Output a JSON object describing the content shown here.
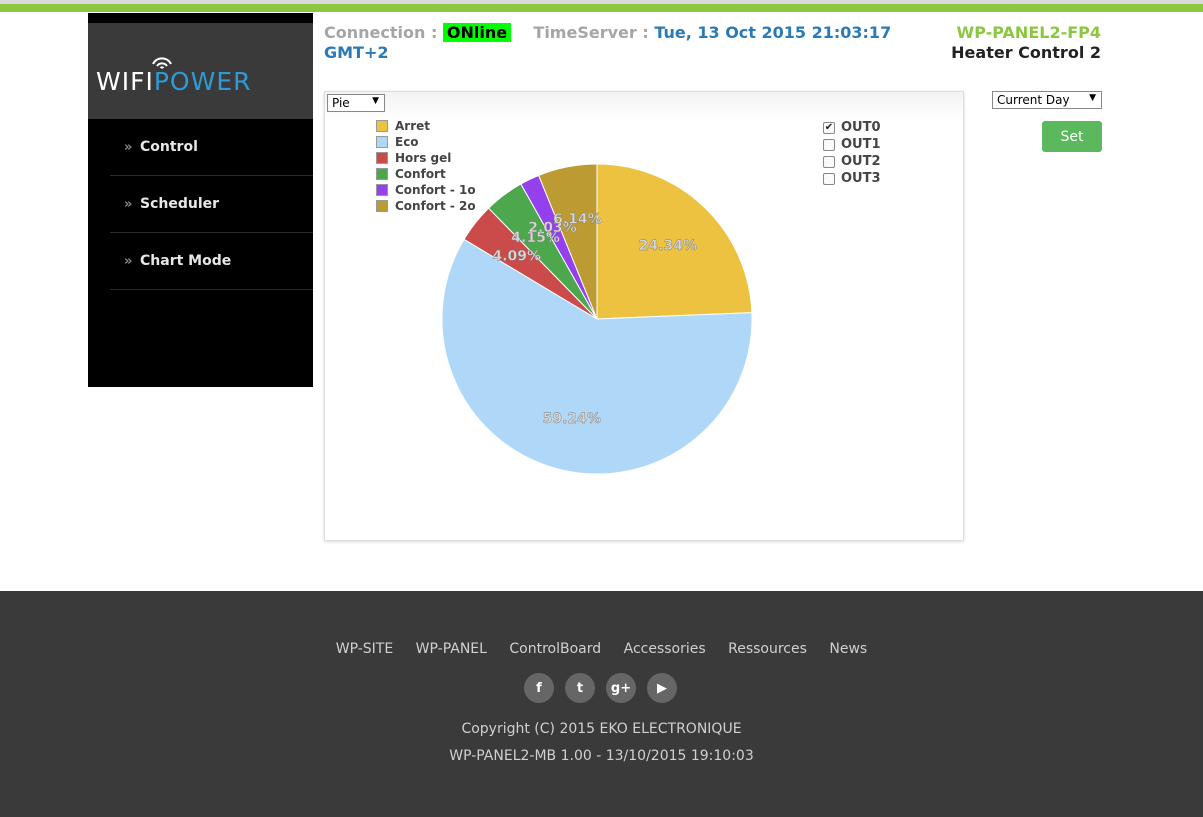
{
  "brand": {
    "wifi": "WIFI",
    "power": "POWER"
  },
  "nav": [
    {
      "label": "Control"
    },
    {
      "label": "Scheduler"
    },
    {
      "label": "Chart Mode"
    }
  ],
  "header": {
    "connection_label": "Connection :",
    "connection_status": "ONline",
    "timeserver_label": "TimeServer :",
    "timeserver_value": "Tue, 13 Oct 2015 21:03:17",
    "timezone": "GMT+2",
    "device_id": "WP-PANEL2-FP4",
    "device_name": "Heater Control 2"
  },
  "controls": {
    "chart_type": "Pie",
    "period": "Current Day",
    "set_label": "Set"
  },
  "outputs": [
    {
      "label": "OUT0",
      "checked": true
    },
    {
      "label": "OUT1",
      "checked": false
    },
    {
      "label": "OUT2",
      "checked": false
    },
    {
      "label": "OUT3",
      "checked": false
    }
  ],
  "chart_data": {
    "type": "pie",
    "categories": [
      "Arret",
      "Eco",
      "Hors gel",
      "Confort",
      "Confort - 1o",
      "Confort - 2o"
    ],
    "values": [
      24.34,
      59.24,
      4.09,
      4.15,
      2.03,
      6.14
    ],
    "labels": [
      "24.34%",
      "59.24%",
      "4.09%",
      "4.15%",
      "2.03%",
      "6.14%"
    ],
    "colors": [
      "#edc240",
      "#afd8f8",
      "#cb4b4b",
      "#4da74d",
      "#9440ed",
      "#bd9b33"
    ],
    "legend_position": "top-left"
  },
  "footer": {
    "links": [
      "WP-SITE",
      "WP-PANEL",
      "ControlBoard",
      "Accessories",
      "Ressources",
      "News"
    ],
    "social": [
      {
        "icon": "facebook-icon",
        "glyph": "f"
      },
      {
        "icon": "twitter-icon",
        "glyph": "t"
      },
      {
        "icon": "google-plus-icon",
        "glyph": "g+"
      },
      {
        "icon": "youtube-icon",
        "glyph": "▶"
      }
    ],
    "copyright": "Copyright (C) 2015 EKO ELECTRONIQUE",
    "build": "WP-PANEL2-MB 1.00 - 13/10/2015 19:10:03"
  }
}
